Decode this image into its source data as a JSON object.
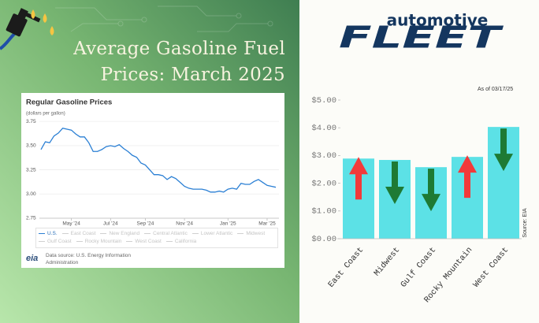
{
  "title": "Average Gasoline Fuel Prices: March 2025",
  "logo": {
    "top": "automotive",
    "bottom": "FLEET"
  },
  "chart_data": [
    {
      "type": "line",
      "title": "Regular Gasoline Prices",
      "subtitle": "(dollars per gallon)",
      "categories": [
        null,
        null,
        null,
        null,
        null,
        null,
        null,
        "May '24",
        null,
        null,
        null,
        null,
        null,
        null,
        null,
        null,
        "Jul '24",
        null,
        null,
        null,
        null,
        null,
        null,
        null,
        "Sep '24",
        null,
        null,
        null,
        null,
        null,
        null,
        null,
        null,
        "Nov '24",
        null,
        null,
        null,
        null,
        null,
        null,
        null,
        null,
        null,
        "Jan '25",
        null,
        null,
        null,
        null,
        null,
        null,
        null,
        null,
        "Mar '25",
        null,
        null
      ],
      "series": [
        {
          "name": "U.S.",
          "color": "#2a7fd4",
          "values": [
            3.46,
            3.54,
            3.53,
            3.6,
            3.63,
            3.68,
            3.67,
            3.66,
            3.62,
            3.59,
            3.59,
            3.53,
            3.44,
            3.44,
            3.46,
            3.49,
            3.5,
            3.49,
            3.51,
            3.47,
            3.44,
            3.4,
            3.38,
            3.32,
            3.3,
            3.25,
            3.2,
            3.2,
            3.19,
            3.15,
            3.18,
            3.16,
            3.12,
            3.08,
            3.06,
            3.05,
            3.05,
            3.05,
            3.04,
            3.02,
            3.02,
            3.03,
            3.02,
            3.05,
            3.06,
            3.05,
            3.11,
            3.1,
            3.1,
            3.13,
            3.15,
            3.12,
            3.09,
            3.08,
            3.07
          ]
        }
      ],
      "legend_inactive": [
        "East Coast",
        "New England",
        "Central Atlantic",
        "Lower Atlantic",
        "Midwest",
        "Gulf Coast",
        "Rocky Mountain",
        "West Coast",
        "California"
      ],
      "ylim": [
        2.75,
        3.8
      ],
      "yticks": [
        2.75,
        {
          "value": 3,
          "label": "3.00"
        },
        3.25,
        {
          "value": 3.5,
          "label": "3.50"
        },
        3.75
      ],
      "grid": true,
      "source": "Data source: U.S. Energy Information Administration",
      "source_logo": "eia"
    },
    {
      "type": "bar",
      "categories": [
        "East Coast",
        "Midwest",
        "Gulf Coast",
        "Rocky Mountain",
        "West Coast"
      ],
      "values": [
        2.89,
        2.84,
        2.58,
        2.95,
        4.03
      ],
      "color": "#5ce1e6",
      "arrows": [
        "up",
        "down",
        "down",
        "up",
        "down"
      ],
      "arrow_colors": {
        "up": "#f23a3a",
        "down": "#1e7a34"
      },
      "ylim": [
        0,
        5
      ],
      "yticks": [
        {
          "value": 0,
          "label": "$0.00"
        },
        {
          "value": 1,
          "label": "$1.00"
        },
        {
          "value": 2,
          "label": "$2.00"
        },
        {
          "value": 3,
          "label": "$3.00"
        },
        {
          "value": 4,
          "label": "$4.00"
        },
        {
          "value": 5,
          "label": "$5.00"
        }
      ],
      "annotation": "As of 03/17/25",
      "source": "Source: EIA"
    }
  ]
}
